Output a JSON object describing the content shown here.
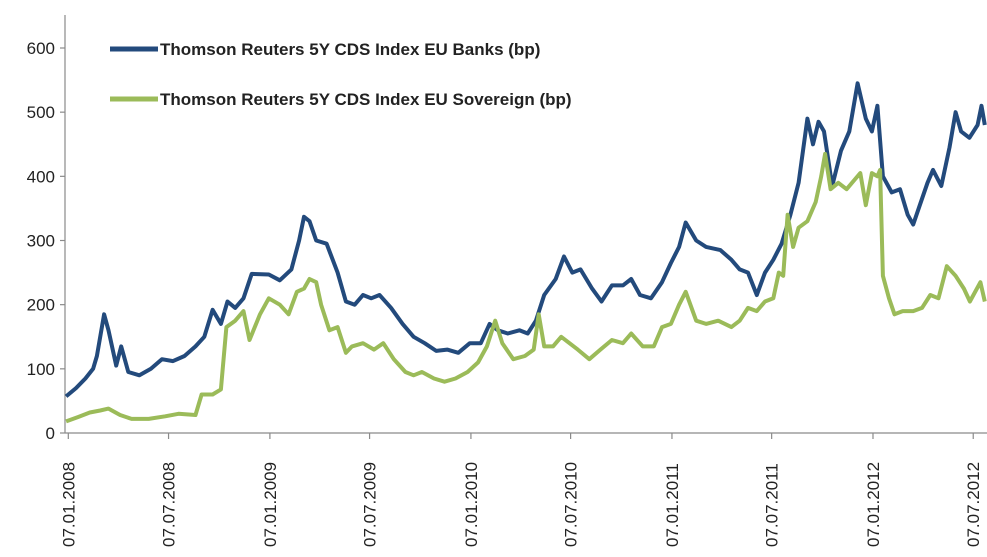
{
  "chart_data": {
    "type": "line",
    "xlim": [
      "2008-01-01",
      "2012-08-01"
    ],
    "xticks": [
      {
        "value": "2008-01-07",
        "label": "07.01.2008"
      },
      {
        "value": "2008-07-07",
        "label": "07.07.2008"
      },
      {
        "value": "2009-01-07",
        "label": "07.01.2009"
      },
      {
        "value": "2009-07-07",
        "label": "07.07.2009"
      },
      {
        "value": "2010-01-07",
        "label": "07.01.2010"
      },
      {
        "value": "2010-07-07",
        "label": "07.07.2010"
      },
      {
        "value": "2011-01-07",
        "label": "07.01.2011"
      },
      {
        "value": "2011-07-07",
        "label": "07.07.2011"
      },
      {
        "value": "2012-01-07",
        "label": "07.01.2012"
      },
      {
        "value": "2012-07-07",
        "label": "07.07.2012"
      }
    ],
    "ylim": [
      0,
      600
    ],
    "yticks": [
      0,
      100,
      200,
      300,
      400,
      500,
      600
    ],
    "grid": false,
    "legend": "upper left",
    "series": [
      {
        "name": "Thomson Reuters 5Y CDS Index EU Banks (bp)",
        "color": "#234a7c",
        "x": [
          "2008-01-03",
          "2008-01-21",
          "2008-02-07",
          "2008-02-21",
          "2008-02-28",
          "2008-03-12",
          "2008-03-20",
          "2008-04-03",
          "2008-04-12",
          "2008-04-25",
          "2008-05-15",
          "2008-06-05",
          "2008-06-25",
          "2008-07-15",
          "2008-08-05",
          "2008-08-25",
          "2008-09-10",
          "2008-09-25",
          "2008-10-10",
          "2008-10-22",
          "2008-11-05",
          "2008-11-20",
          "2008-12-05",
          "2009-01-05",
          "2009-01-25",
          "2009-02-15",
          "2009-03-01",
          "2009-03-10",
          "2009-03-20",
          "2009-04-01",
          "2009-04-20",
          "2009-05-10",
          "2009-05-25",
          "2009-06-10",
          "2009-06-25",
          "2009-07-10",
          "2009-07-25",
          "2009-08-15",
          "2009-09-05",
          "2009-09-25",
          "2009-10-15",
          "2009-11-05",
          "2009-11-25",
          "2009-12-15",
          "2010-01-05",
          "2010-01-25",
          "2010-02-10",
          "2010-02-25",
          "2010-03-15",
          "2010-04-05",
          "2010-04-20",
          "2010-05-05",
          "2010-05-20",
          "2010-06-10",
          "2010-06-25",
          "2010-07-10",
          "2010-07-25",
          "2010-08-15",
          "2010-09-01",
          "2010-09-20",
          "2010-10-10",
          "2010-10-25",
          "2010-11-10",
          "2010-11-30",
          "2010-12-20",
          "2011-01-05",
          "2011-01-20",
          "2011-02-01",
          "2011-02-20",
          "2011-03-10",
          "2011-04-05",
          "2011-04-25",
          "2011-05-10",
          "2011-05-25",
          "2011-06-10",
          "2011-06-25",
          "2011-07-10",
          "2011-07-25",
          "2011-08-10",
          "2011-08-25",
          "2011-09-10",
          "2011-09-20",
          "2011-09-30",
          "2011-10-10",
          "2011-10-25",
          "2011-11-10",
          "2011-11-25",
          "2011-12-10",
          "2011-12-25",
          "2012-01-05",
          "2012-01-15",
          "2012-01-25",
          "2012-02-10",
          "2012-02-25",
          "2012-03-10",
          "2012-03-20",
          "2012-04-01",
          "2012-04-15",
          "2012-04-25",
          "2012-05-10",
          "2012-05-25",
          "2012-06-05",
          "2012-06-15",
          "2012-06-30",
          "2012-07-15",
          "2012-07-22",
          "2012-07-28"
        ],
        "values": [
          57,
          70,
          85,
          100,
          120,
          185,
          160,
          105,
          135,
          95,
          90,
          100,
          115,
          112,
          120,
          135,
          150,
          192,
          170,
          205,
          195,
          210,
          248,
          247,
          238,
          255,
          300,
          337,
          330,
          300,
          295,
          250,
          205,
          200,
          215,
          210,
          215,
          195,
          170,
          150,
          140,
          128,
          130,
          125,
          140,
          140,
          170,
          160,
          155,
          160,
          155,
          175,
          215,
          240,
          275,
          250,
          255,
          225,
          205,
          230,
          230,
          240,
          215,
          210,
          235,
          265,
          290,
          328,
          300,
          290,
          285,
          270,
          255,
          250,
          215,
          250,
          270,
          295,
          340,
          390,
          490,
          450,
          485,
          470,
          385,
          440,
          470,
          545,
          490,
          470,
          510,
          400,
          375,
          380,
          340,
          325,
          355,
          390,
          410,
          385,
          445,
          500,
          470,
          460,
          480,
          510,
          480
        ]
      },
      {
        "name": "Thomson Reuters 5Y CDS Index EU Sovereign (bp)",
        "color": "#9bbb59",
        "x": [
          "2008-01-03",
          "2008-01-25",
          "2008-02-15",
          "2008-03-05",
          "2008-03-20",
          "2008-04-10",
          "2008-05-01",
          "2008-06-01",
          "2008-07-01",
          "2008-07-25",
          "2008-08-25",
          "2008-09-05",
          "2008-09-25",
          "2008-10-10",
          "2008-10-20",
          "2008-11-05",
          "2008-11-20",
          "2008-12-01",
          "2008-12-20",
          "2009-01-05",
          "2009-01-25",
          "2009-02-10",
          "2009-02-25",
          "2009-03-10",
          "2009-03-20",
          "2009-04-01",
          "2009-04-10",
          "2009-04-25",
          "2009-05-10",
          "2009-05-25",
          "2009-06-05",
          "2009-06-25",
          "2009-07-15",
          "2009-08-01",
          "2009-08-20",
          "2009-09-10",
          "2009-09-25",
          "2009-10-10",
          "2009-11-01",
          "2009-11-20",
          "2009-12-10",
          "2010-01-01",
          "2010-01-20",
          "2010-02-05",
          "2010-02-20",
          "2010-03-05",
          "2010-03-25",
          "2010-04-15",
          "2010-05-01",
          "2010-05-10",
          "2010-05-20",
          "2010-06-05",
          "2010-06-20",
          "2010-07-05",
          "2010-07-20",
          "2010-08-10",
          "2010-08-30",
          "2010-09-20",
          "2010-10-10",
          "2010-10-25",
          "2010-11-15",
          "2010-12-05",
          "2010-12-20",
          "2011-01-05",
          "2011-01-20",
          "2011-02-01",
          "2011-02-20",
          "2011-03-10",
          "2011-04-01",
          "2011-04-25",
          "2011-05-10",
          "2011-05-25",
          "2011-06-10",
          "2011-06-25",
          "2011-07-10",
          "2011-07-20",
          "2011-07-28",
          "2011-08-05",
          "2011-08-15",
          "2011-08-25",
          "2011-09-10",
          "2011-09-25",
          "2011-10-05",
          "2011-10-12",
          "2011-10-22",
          "2011-11-05",
          "2011-11-20",
          "2011-12-05",
          "2011-12-15",
          "2011-12-25",
          "2012-01-05",
          "2012-01-15",
          "2012-01-20",
          "2012-01-25",
          "2012-02-05",
          "2012-02-15",
          "2012-03-01",
          "2012-03-20",
          "2012-04-05",
          "2012-04-20",
          "2012-05-05",
          "2012-05-20",
          "2012-06-05",
          "2012-06-20",
          "2012-07-01",
          "2012-07-20",
          "2012-07-28"
        ],
        "values": [
          18,
          25,
          32,
          35,
          38,
          28,
          22,
          22,
          26,
          30,
          28,
          60,
          60,
          68,
          165,
          175,
          190,
          145,
          185,
          210,
          200,
          185,
          220,
          225,
          240,
          235,
          200,
          160,
          165,
          125,
          135,
          140,
          130,
          140,
          115,
          95,
          90,
          95,
          85,
          80,
          85,
          95,
          110,
          135,
          175,
          140,
          115,
          120,
          130,
          185,
          135,
          135,
          150,
          140,
          130,
          115,
          130,
          145,
          140,
          155,
          135,
          135,
          165,
          170,
          200,
          220,
          175,
          170,
          175,
          165,
          175,
          195,
          190,
          205,
          210,
          250,
          245,
          340,
          290,
          320,
          330,
          360,
          400,
          435,
          380,
          390,
          380,
          395,
          405,
          355,
          405,
          400,
          410,
          245,
          210,
          185,
          190,
          190,
          195,
          215,
          210,
          260,
          245,
          225,
          205,
          235,
          205
        ]
      }
    ]
  }
}
